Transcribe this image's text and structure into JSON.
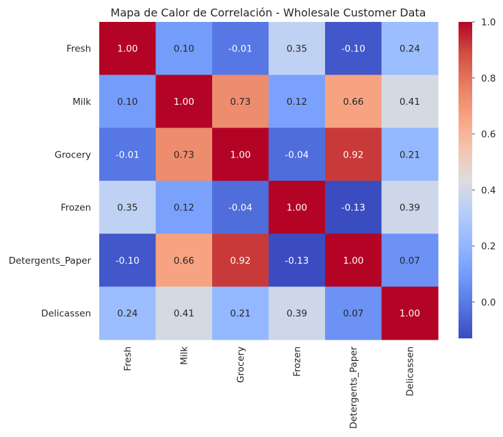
{
  "chart_data": {
    "type": "heatmap",
    "title": "Mapa de Calor de Correlación - Wholesale Customer Data",
    "xlabel": "",
    "ylabel": "",
    "categories_x": [
      "Fresh",
      "Milk",
      "Grocery",
      "Frozen",
      "Detergents_Paper",
      "Delicassen"
    ],
    "categories_y": [
      "Fresh",
      "Milk",
      "Grocery",
      "Frozen",
      "Detergents_Paper",
      "Delicassen"
    ],
    "values": [
      [
        1.0,
        0.1,
        -0.01,
        0.35,
        -0.1,
        0.24
      ],
      [
        0.1,
        1.0,
        0.73,
        0.12,
        0.66,
        0.41
      ],
      [
        -0.01,
        0.73,
        1.0,
        -0.04,
        0.92,
        0.21
      ],
      [
        0.35,
        0.12,
        -0.04,
        1.0,
        -0.13,
        0.39
      ],
      [
        -0.1,
        0.66,
        0.92,
        -0.13,
        1.0,
        0.07
      ],
      [
        0.24,
        0.41,
        0.21,
        0.39,
        0.07,
        1.0
      ]
    ],
    "value_format": "2 decimals",
    "colormap": "coolwarm",
    "vmin": -0.13,
    "vmax": 1.0,
    "colorbar": {
      "ticks": [
        0.0,
        0.2,
        0.4,
        0.6,
        0.8,
        1.0
      ],
      "tick_labels": [
        "0.0",
        "0.2",
        "0.4",
        "0.6",
        "0.8",
        "1.0"
      ],
      "placement": "right"
    },
    "grid": false
  }
}
